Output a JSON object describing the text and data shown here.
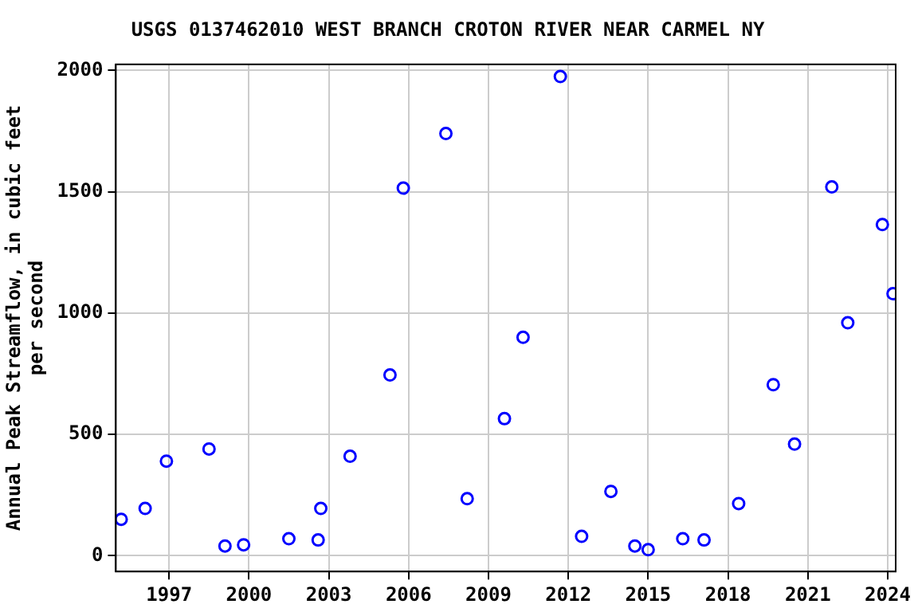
{
  "chart_data": {
    "type": "scatter",
    "title": "USGS 0137462010 WEST BRANCH CROTON RIVER NEAR CARMEL NY",
    "ylabel": "Annual Peak Streamflow, in cubic feet\nper second",
    "x": [
      1995.2,
      1996.1,
      1996.9,
      1998.5,
      1999.1,
      1999.8,
      2001.5,
      2002.6,
      2002.7,
      2003.8,
      2005.3,
      2005.8,
      2007.4,
      2008.2,
      2009.6,
      2010.3,
      2011.7,
      2012.5,
      2013.6,
      2014.5,
      2015.0,
      2016.3,
      2017.1,
      2018.4,
      2019.7,
      2020.5,
      2021.9,
      2022.5,
      2023.8,
      2024.2
    ],
    "series": [
      {
        "color": "#0000ff",
        "values": [
          150,
          195,
          390,
          440,
          40,
          45,
          70,
          65,
          195,
          410,
          745,
          1515,
          1740,
          235,
          565,
          900,
          1975,
          80,
          265,
          40,
          25,
          70,
          65,
          215,
          705,
          460,
          1520,
          960,
          1365,
          1080
        ]
      }
    ],
    "xlim": [
      1995,
      2024.3
    ],
    "xticks": [
      1997,
      2000,
      2003,
      2006,
      2009,
      2012,
      2015,
      2018,
      2021,
      2024
    ],
    "ylim": [
      -65,
      2025
    ],
    "yticks": [
      0,
      500,
      1000,
      1500,
      2000
    ],
    "grid": true,
    "marker": "circle",
    "legend": false
  }
}
